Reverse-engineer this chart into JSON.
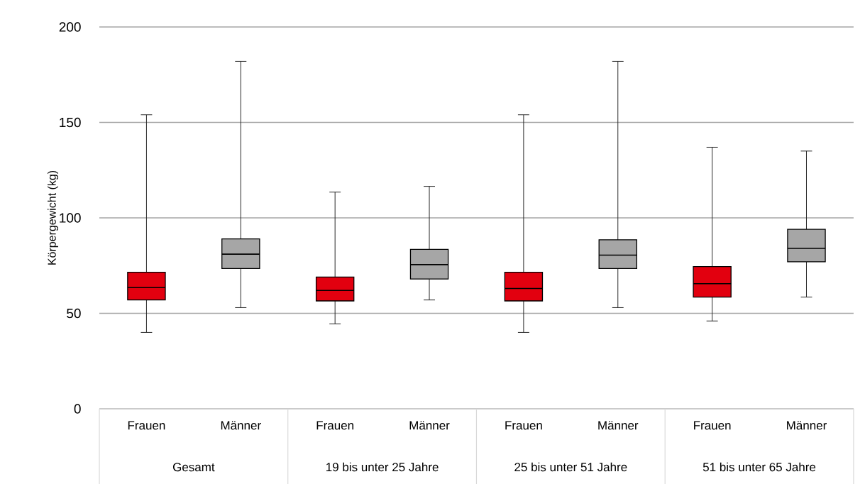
{
  "chart_data": {
    "type": "box",
    "categories": [
      "Frauen",
      "Männer",
      "Frauen",
      "Männer",
      "Frauen",
      "Männer",
      "Frauen",
      "Männer"
    ],
    "boxes": [
      {
        "low": 40,
        "q1": 57,
        "median": 63.5,
        "q3": 71.5,
        "high": 154
      },
      {
        "low": 53,
        "q1": 73.5,
        "median": 81,
        "q3": 89,
        "high": 182
      },
      {
        "low": 44.5,
        "q1": 56.5,
        "median": 62,
        "q3": 69,
        "high": 113.5
      },
      {
        "low": 57,
        "q1": 68,
        "median": 75.5,
        "q3": 83.5,
        "high": 116.5
      },
      {
        "low": 40,
        "q1": 56.5,
        "median": 63,
        "q3": 71.5,
        "high": 154
      },
      {
        "low": 53,
        "q1": 73.5,
        "median": 80.5,
        "q3": 88.5,
        "high": 182
      },
      {
        "low": 46,
        "q1": 58.5,
        "median": 65.5,
        "q3": 74.5,
        "high": 137
      },
      {
        "low": 58.5,
        "q1": 77,
        "median": 84,
        "q3": 94,
        "high": 135
      }
    ],
    "colors": [
      "#e2000f",
      "#a6a6a6",
      "#e2000f",
      "#a6a6a6",
      "#e2000f",
      "#a6a6a6",
      "#e2000f",
      "#a6a6a6"
    ],
    "ylabel": "Körpergewicht (kg)",
    "ylim": [
      0,
      200
    ],
    "yticks": [
      0,
      50,
      100,
      150,
      200
    ],
    "grid": "y",
    "annotations": [
      "Gesamt",
      "19 bis unter 25 Jahre",
      "25 bis unter 51 Jahre",
      "51 bis unter 65 Jahre"
    ]
  }
}
